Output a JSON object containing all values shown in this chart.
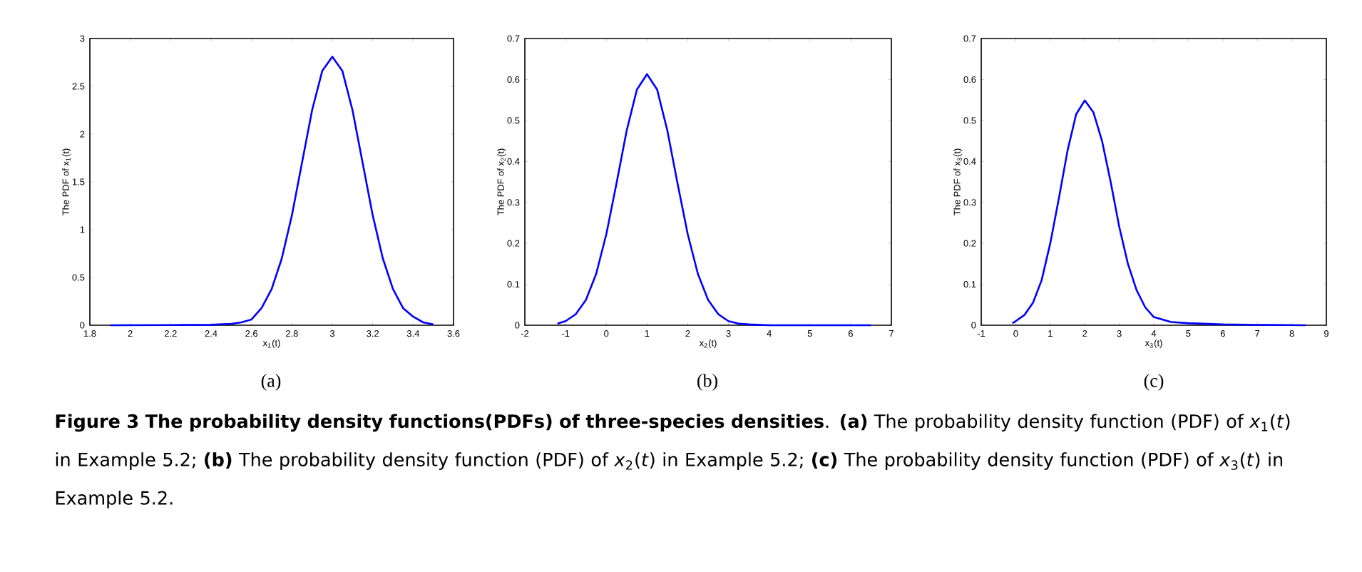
{
  "chart_data": [
    {
      "type": "line",
      "xlabel": "x$_{1}$(t)",
      "ylabel": "The PDF of x$_{1}$(t)",
      "xlim": [
        1.8,
        3.6
      ],
      "ylim": [
        0,
        3
      ],
      "xticks": [
        1.8,
        2,
        2.2,
        2.4,
        2.6,
        2.8,
        3,
        3.2,
        3.4,
        3.6
      ],
      "yticks": [
        0,
        0.5,
        1,
        1.5,
        2,
        2.5,
        3
      ],
      "x": [
        1.9,
        2.2,
        2.4,
        2.5,
        2.55,
        2.6,
        2.65,
        2.7,
        2.75,
        2.8,
        2.85,
        2.9,
        2.95,
        3.0,
        3.05,
        3.1,
        3.15,
        3.2,
        3.25,
        3.3,
        3.35,
        3.4,
        3.45,
        3.5
      ],
      "series": [
        {
          "color": "#0000ff",
          "values": [
            0,
            0.002,
            0.005,
            0.015,
            0.03,
            0.06,
            0.18,
            0.38,
            0.7,
            1.15,
            1.7,
            2.25,
            2.66,
            2.81,
            2.66,
            2.25,
            1.7,
            1.15,
            0.7,
            0.38,
            0.18,
            0.09,
            0.03,
            0.01
          ]
        }
      ],
      "annotations": [
        "(a)"
      ]
    },
    {
      "type": "line",
      "xlabel": "x$_{2}$(t)",
      "ylabel": "The PDF of x$_{2}$(t)",
      "xlim": [
        -2,
        7
      ],
      "ylim": [
        0,
        0.7
      ],
      "xticks": [
        -2,
        -1,
        0,
        1,
        2,
        3,
        4,
        5,
        6,
        7
      ],
      "yticks": [
        0,
        0.1,
        0.2,
        0.3,
        0.4,
        0.5,
        0.6,
        0.7
      ],
      "x": [
        -1.2,
        -1,
        -0.75,
        -0.5,
        -0.25,
        0,
        0.25,
        0.5,
        0.75,
        1,
        1.25,
        1.5,
        1.75,
        2,
        2.25,
        2.5,
        2.75,
        3,
        3.25,
        3.5,
        4,
        5,
        6,
        6.5
      ],
      "series": [
        {
          "color": "#0000ff",
          "values": [
            0.004,
            0.01,
            0.027,
            0.062,
            0.125,
            0.222,
            0.346,
            0.475,
            0.575,
            0.613,
            0.575,
            0.475,
            0.346,
            0.222,
            0.125,
            0.062,
            0.027,
            0.01,
            0.004,
            0.002,
            0,
            0,
            0,
            0
          ]
        }
      ],
      "annotations": [
        "(b)"
      ]
    },
    {
      "type": "line",
      "xlabel": "x$_{3}$(t)",
      "ylabel": "The PDF of x$_{3}$(t)",
      "xlim": [
        -1,
        9
      ],
      "ylim": [
        0,
        0.7
      ],
      "xticks": [
        -1,
        0,
        1,
        2,
        3,
        4,
        5,
        6,
        7,
        8,
        9
      ],
      "yticks": [
        0,
        0.1,
        0.2,
        0.3,
        0.4,
        0.5,
        0.6,
        0.7
      ],
      "x": [
        -0.1,
        0,
        0.25,
        0.5,
        0.75,
        1,
        1.25,
        1.5,
        1.75,
        2,
        2.25,
        2.5,
        2.75,
        3,
        3.25,
        3.5,
        3.75,
        4,
        4.5,
        5,
        6,
        7,
        8.4
      ],
      "series": [
        {
          "color": "#0000ff",
          "values": [
            0.005,
            0.01,
            0.025,
            0.055,
            0.11,
            0.2,
            0.31,
            0.426,
            0.515,
            0.549,
            0.52,
            0.45,
            0.35,
            0.24,
            0.15,
            0.086,
            0.044,
            0.02,
            0.008,
            0.005,
            0.002,
            0.001,
            0
          ]
        }
      ],
      "annotations": [
        "(c)",
        "**Figure 3  The probability density functions(PDFs) of three-species densities**. **(a)** The probability density function (PDF) of *x*$_{1}$(*t*) in Example 5.2; **(b)** The probability density function (PDF) of *x*$_{2}$(*t*) in Example 5.2; **(c)** The probability density function (PDF) of *x*$_{3}$(*t*) in Example 5.2."
      ]
    }
  ]
}
